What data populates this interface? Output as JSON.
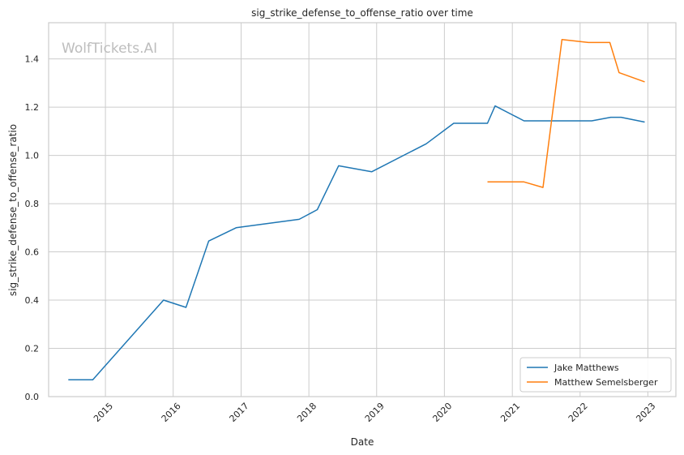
{
  "chart_data": {
    "type": "line",
    "title": "sig_strike_defense_to_offense_ratio over time",
    "xlabel": "Date",
    "ylabel": "sig_strike_defense_to_offense_ratio",
    "watermark": "WolfTickets.AI",
    "x_ticks": [
      "2015",
      "2016",
      "2017",
      "2018",
      "2019",
      "2020",
      "2021",
      "2022",
      "2023"
    ],
    "y_ticks": [
      "0.0",
      "0.2",
      "0.4",
      "0.6",
      "0.8",
      "1.0",
      "1.2",
      "1.4"
    ],
    "ylim": [
      0,
      1.55
    ],
    "xlim": [
      "2014-03-01",
      "2023-06-01"
    ],
    "grid": true,
    "legend_position": "lower-right",
    "series": [
      {
        "name": "Jake Matthews",
        "color": "#1f77b4",
        "points": [
          [
            "2014-06-15",
            0.07
          ],
          [
            "2014-10-25",
            0.07
          ],
          [
            "2015-11-10",
            0.4
          ],
          [
            "2016-03-10",
            0.37
          ],
          [
            "2016-07-10",
            0.645
          ],
          [
            "2016-12-05",
            0.7
          ],
          [
            "2017-11-10",
            0.735
          ],
          [
            "2018-02-15",
            0.775
          ],
          [
            "2018-06-10",
            0.957
          ],
          [
            "2018-12-05",
            0.932
          ],
          [
            "2019-09-25",
            1.048
          ],
          [
            "2020-02-20",
            1.133
          ],
          [
            "2020-08-20",
            1.133
          ],
          [
            "2020-09-30",
            1.205
          ],
          [
            "2021-03-05",
            1.143
          ],
          [
            "2022-03-05",
            1.143
          ],
          [
            "2022-06-15",
            1.158
          ],
          [
            "2022-08-10",
            1.158
          ],
          [
            "2022-12-15",
            1.138
          ]
        ]
      },
      {
        "name": "Matthew Semelsberger",
        "color": "#ff7f0e",
        "points": [
          [
            "2020-08-20",
            0.89
          ],
          [
            "2021-03-05",
            0.89
          ],
          [
            "2021-06-15",
            0.867
          ],
          [
            "2021-09-25",
            1.48
          ],
          [
            "2022-02-15",
            1.468
          ],
          [
            "2022-06-10",
            1.468
          ],
          [
            "2022-07-30",
            1.343
          ],
          [
            "2022-12-15",
            1.305
          ]
        ]
      }
    ]
  }
}
